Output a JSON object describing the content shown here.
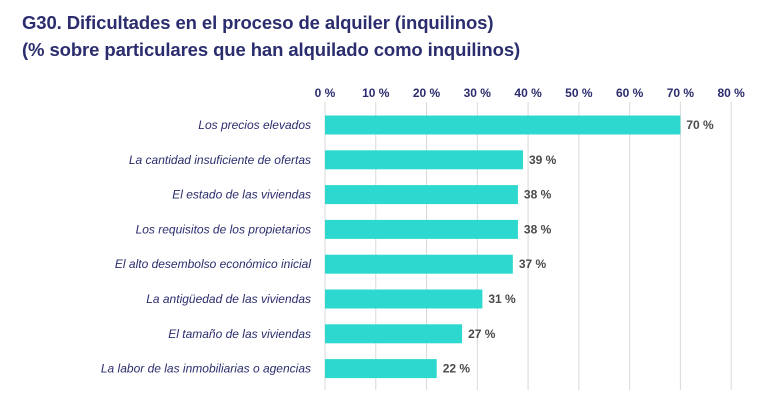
{
  "chart_data": {
    "type": "bar",
    "orientation": "horizontal",
    "title": "G30. Dificultades en el proceso de alquiler (inquilinos)",
    "subtitle": "(% sobre particulares que han alquilado como inquilinos)",
    "categories": [
      "Los precios elevados",
      "La cantidad insuficiente de ofertas",
      "El estado de las viviendas",
      "Los requisitos de los propietarios",
      "El alto desembolso económico inicial",
      "La antigüedad de las viviendas",
      "El tamaño de las viviendas",
      "La labor de las inmobiliarias o agencias"
    ],
    "values": [
      70,
      39,
      38,
      38,
      37,
      31,
      27,
      22
    ],
    "value_labels": [
      "70 %",
      "39 %",
      "38 %",
      "38 %",
      "37 %",
      "31 %",
      "27 %",
      "22 %"
    ],
    "x_ticks": [
      0,
      10,
      20,
      30,
      40,
      50,
      60,
      70,
      80
    ],
    "x_tick_labels": [
      "0 %",
      "10 %",
      "20 %",
      "30 %",
      "40 %",
      "50 %",
      "60 %",
      "70 %",
      "80 %"
    ],
    "xlim": [
      0,
      80
    ],
    "axis_position": "top",
    "grid": "vertical",
    "bar_color": "#2dd9cf",
    "grid_color": "#d9d9d9",
    "text_color": "#2b2d6e"
  }
}
